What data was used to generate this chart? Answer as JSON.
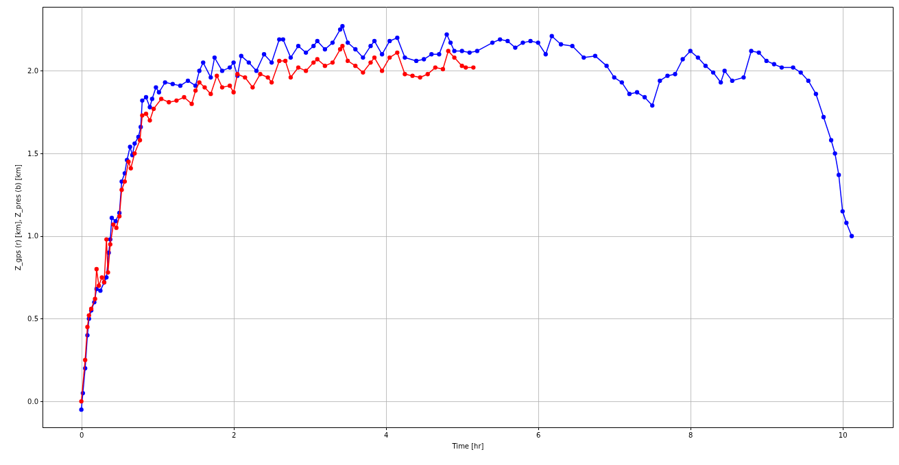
{
  "chart_data": {
    "type": "line",
    "xlabel": "Time [hr]",
    "ylabel": "Z_gps (r) [km], Z_pres (b) [km]",
    "xlim": [
      -0.51,
      10.66
    ],
    "ylim": [
      -0.157,
      2.387
    ],
    "xticks": [
      0,
      2,
      4,
      6,
      8,
      10
    ],
    "yticks": [
      {
        "value": 0,
        "label": "0.0"
      },
      {
        "value": 0.5,
        "label": "0.5"
      },
      {
        "value": 1,
        "label": "1.0"
      },
      {
        "value": 1.5,
        "label": "1.5"
      },
      {
        "value": 2,
        "label": "2.0"
      }
    ],
    "grid": true,
    "marker": "circle",
    "line_style": "solid",
    "series": [
      {
        "color": "#0000ff",
        "x": [
          0.0,
          0.02,
          0.05,
          0.08,
          0.1,
          0.13,
          0.17,
          0.2,
          0.25,
          0.3,
          0.33,
          0.36,
          0.38,
          0.4,
          0.45,
          0.5,
          0.53,
          0.57,
          0.6,
          0.64,
          0.67,
          0.7,
          0.75,
          0.78,
          0.8,
          0.85,
          0.9,
          0.93,
          0.98,
          1.02,
          1.1,
          1.2,
          1.3,
          1.4,
          1.5,
          1.55,
          1.6,
          1.7,
          1.75,
          1.85,
          1.95,
          2.0,
          2.05,
          2.1,
          2.2,
          2.3,
          2.4,
          2.5,
          2.6,
          2.65,
          2.75,
          2.85,
          2.95,
          3.05,
          3.1,
          3.2,
          3.3,
          3.4,
          3.43,
          3.5,
          3.6,
          3.7,
          3.8,
          3.85,
          3.95,
          4.05,
          4.15,
          4.25,
          4.4,
          4.5,
          4.6,
          4.7,
          4.8,
          4.85,
          4.9,
          5.0,
          5.1,
          5.2,
          5.4,
          5.5,
          5.6,
          5.7,
          5.8,
          5.9,
          6.0,
          6.1,
          6.18,
          6.3,
          6.45,
          6.6,
          6.75,
          6.9,
          7.0,
          7.1,
          7.2,
          7.3,
          7.4,
          7.5,
          7.6,
          7.7,
          7.8,
          7.9,
          8.0,
          8.1,
          8.2,
          8.3,
          8.4,
          8.45,
          8.55,
          8.7,
          8.8,
          8.9,
          9.0,
          9.1,
          9.2,
          9.35,
          9.45,
          9.55,
          9.65,
          9.75,
          9.85,
          9.9,
          9.95,
          10.0,
          10.05,
          10.12
        ],
        "values": [
          -0.05,
          0.05,
          0.2,
          0.4,
          0.5,
          0.55,
          0.6,
          0.68,
          0.67,
          0.72,
          0.75,
          0.9,
          0.98,
          1.11,
          1.09,
          1.14,
          1.33,
          1.38,
          1.46,
          1.54,
          1.49,
          1.56,
          1.6,
          1.66,
          1.82,
          1.84,
          1.78,
          1.83,
          1.9,
          1.87,
          1.93,
          1.92,
          1.91,
          1.94,
          1.91,
          2.0,
          2.05,
          1.96,
          2.08,
          2.0,
          2.02,
          2.05,
          1.97,
          2.09,
          2.05,
          2.0,
          2.1,
          2.05,
          2.19,
          2.19,
          2.08,
          2.15,
          2.11,
          2.15,
          2.18,
          2.13,
          2.17,
          2.25,
          2.27,
          2.17,
          2.13,
          2.08,
          2.15,
          2.18,
          2.1,
          2.18,
          2.2,
          2.08,
          2.06,
          2.07,
          2.1,
          2.1,
          2.22,
          2.17,
          2.12,
          2.12,
          2.11,
          2.12,
          2.17,
          2.19,
          2.18,
          2.14,
          2.17,
          2.18,
          2.17,
          2.1,
          2.21,
          2.16,
          2.15,
          2.08,
          2.09,
          2.03,
          1.96,
          1.93,
          1.86,
          1.87,
          1.84,
          1.79,
          1.94,
          1.97,
          1.98,
          2.07,
          2.12,
          2.08,
          2.03,
          1.99,
          1.93,
          2.0,
          1.94,
          1.96,
          2.12,
          2.11,
          2.06,
          2.04,
          2.02,
          2.02,
          1.99,
          1.94,
          1.86,
          1.72,
          1.58,
          1.5,
          1.37,
          1.15,
          1.08,
          1.0
        ]
      },
      {
        "color": "#ff0000",
        "x": [
          0.0,
          0.05,
          0.08,
          0.1,
          0.13,
          0.18,
          0.2,
          0.23,
          0.27,
          0.3,
          0.33,
          0.35,
          0.38,
          0.42,
          0.46,
          0.5,
          0.53,
          0.57,
          0.62,
          0.65,
          0.7,
          0.77,
          0.8,
          0.85,
          0.9,
          0.95,
          1.05,
          1.15,
          1.25,
          1.35,
          1.45,
          1.5,
          1.55,
          1.62,
          1.7,
          1.78,
          1.85,
          1.95,
          2.0,
          2.05,
          2.15,
          2.25,
          2.35,
          2.45,
          2.5,
          2.6,
          2.68,
          2.75,
          2.85,
          2.95,
          3.05,
          3.1,
          3.2,
          3.3,
          3.4,
          3.43,
          3.5,
          3.6,
          3.7,
          3.8,
          3.85,
          3.95,
          4.05,
          4.15,
          4.25,
          4.35,
          4.45,
          4.55,
          4.65,
          4.75,
          4.82,
          4.9,
          5.0,
          5.05,
          5.15
        ],
        "values": [
          0.0,
          0.25,
          0.45,
          0.52,
          0.56,
          0.62,
          0.8,
          0.7,
          0.75,
          0.72,
          0.98,
          0.78,
          0.95,
          1.07,
          1.05,
          1.12,
          1.28,
          1.33,
          1.45,
          1.41,
          1.5,
          1.58,
          1.73,
          1.74,
          1.7,
          1.77,
          1.83,
          1.81,
          1.82,
          1.84,
          1.8,
          1.88,
          1.93,
          1.9,
          1.86,
          1.97,
          1.9,
          1.91,
          1.87,
          1.98,
          1.96,
          1.9,
          1.98,
          1.96,
          1.93,
          2.06,
          2.06,
          1.96,
          2.02,
          2.0,
          2.05,
          2.07,
          2.03,
          2.05,
          2.13,
          2.15,
          2.06,
          2.03,
          1.99,
          2.05,
          2.08,
          2.0,
          2.08,
          2.11,
          1.98,
          1.97,
          1.96,
          1.98,
          2.02,
          2.01,
          2.12,
          2.08,
          2.03,
          2.02,
          2.02
        ]
      }
    ]
  }
}
